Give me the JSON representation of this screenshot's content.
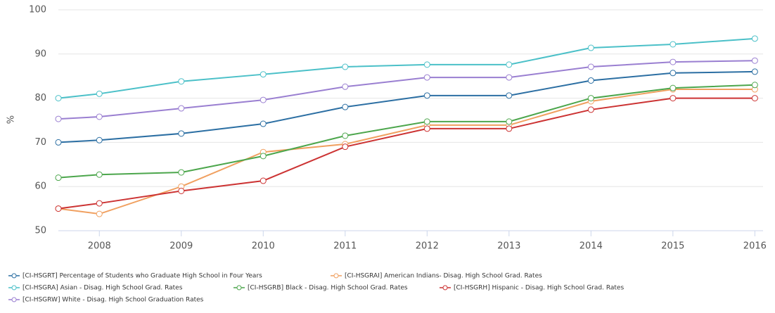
{
  "chart_data": {
    "type": "line",
    "y_label": "%",
    "x": [
      2007.5,
      2008,
      2009,
      2010,
      2011,
      2012,
      2013,
      2014,
      2015,
      2016
    ],
    "xlim": [
      2007.5,
      2016.1
    ],
    "xticks": [
      2008,
      2009,
      2010,
      2011,
      2012,
      2013,
      2014,
      2015,
      2016
    ],
    "ylim": [
      50,
      100
    ],
    "yticks": [
      50,
      60,
      70,
      80,
      90,
      100
    ],
    "grid": true,
    "legend": "bottom",
    "series": [
      {
        "name": "[CI-HSGRT] Percentage of Students who Graduate High School in Four Years",
        "color": "#2c6fa3",
        "values": [
          70,
          70.5,
          72,
          74.2,
          78,
          80.6,
          80.6,
          84,
          85.7,
          86
        ]
      },
      {
        "name": "[CI-HSGRAI] American Indians- Disag. High School Grad. Rates",
        "color": "#f0a060",
        "values": [
          55,
          53.8,
          60,
          67.8,
          69.6,
          73.9,
          73.9,
          79.3,
          82,
          82
        ]
      },
      {
        "name": "[CI-HSGRA] Asian - Disag. High School Grad. Rates",
        "color": "#4bc0c8",
        "values": [
          80,
          81,
          83.8,
          85.4,
          87.1,
          87.6,
          87.6,
          91.4,
          92.2,
          93.5
        ]
      },
      {
        "name": "[CI-HSGRB] Black - Disag. High School Grad. Rates",
        "color": "#4ca64c",
        "values": [
          62,
          62.7,
          63.2,
          66.9,
          71.5,
          74.7,
          74.7,
          80,
          82.3,
          83
        ]
      },
      {
        "name": "[CI-HSGRH] Hispanic - Disag. High School Grad. Rates",
        "color": "#cc3333",
        "values": [
          55,
          56.2,
          59,
          61.3,
          69,
          73.1,
          73.1,
          77.4,
          80,
          80
        ]
      },
      {
        "name": "[CI-HSGRW] White - Disag. High School Graduation Rates",
        "color": "#9a7fd1",
        "values": [
          75.3,
          75.8,
          77.7,
          79.6,
          82.6,
          84.7,
          84.7,
          87.1,
          88.2,
          88.5
        ]
      }
    ]
  }
}
